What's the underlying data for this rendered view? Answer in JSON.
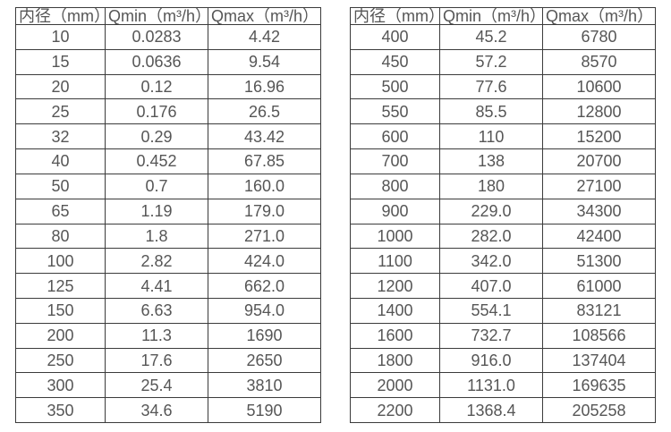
{
  "colors": {
    "background": "#ffffff",
    "border": "#3b3b3b",
    "text": "#565656"
  },
  "tables": [
    {
      "name": "small-diameter-flow-rates",
      "headers": [
        "内径（mm）",
        "Qmin（m³/h）",
        "Qmax（m³/h）"
      ],
      "rows": [
        [
          "10",
          "0.0283",
          "4.42"
        ],
        [
          "15",
          "0.0636",
          "9.54"
        ],
        [
          "20",
          "0.12",
          "16.96"
        ],
        [
          "25",
          "0.176",
          "26.5"
        ],
        [
          "32",
          "0.29",
          "43.42"
        ],
        [
          "40",
          "0.452",
          "67.85"
        ],
        [
          "50",
          "0.7",
          "160.0"
        ],
        [
          "65",
          "1.19",
          "179.0"
        ],
        [
          "80",
          "1.8",
          "271.0"
        ],
        [
          "100",
          "2.82",
          "424.0"
        ],
        [
          "125",
          "4.41",
          "662.0"
        ],
        [
          "150",
          "6.63",
          "954.0"
        ],
        [
          "200",
          "11.3",
          "1690"
        ],
        [
          "250",
          "17.6",
          "2650"
        ],
        [
          "300",
          "25.4",
          "3810"
        ],
        [
          "350",
          "34.6",
          "5190"
        ]
      ]
    },
    {
      "name": "large-diameter-flow-rates",
      "headers": [
        "内径（mm）",
        "Qmin（m³/h）",
        "Qmax（m³/h）"
      ],
      "rows": [
        [
          "400",
          "45.2",
          "6780"
        ],
        [
          "450",
          "57.2",
          "8570"
        ],
        [
          "500",
          "77.6",
          "10600"
        ],
        [
          "550",
          "85.5",
          "12800"
        ],
        [
          "600",
          "110",
          "15200"
        ],
        [
          "700",
          "138",
          "20700"
        ],
        [
          "800",
          "180",
          "27100"
        ],
        [
          "900",
          "229.0",
          "34300"
        ],
        [
          "1000",
          "282.0",
          "42400"
        ],
        [
          "1100",
          "342.0",
          "51300"
        ],
        [
          "1200",
          "407.0",
          "61000"
        ],
        [
          "1400",
          "554.1",
          "83121"
        ],
        [
          "1600",
          "732.7",
          "108566"
        ],
        [
          "1800",
          "916.0",
          "137404"
        ],
        [
          "2000",
          "1131.0",
          "169635"
        ],
        [
          "2200",
          "1368.4",
          "205258"
        ]
      ]
    }
  ]
}
